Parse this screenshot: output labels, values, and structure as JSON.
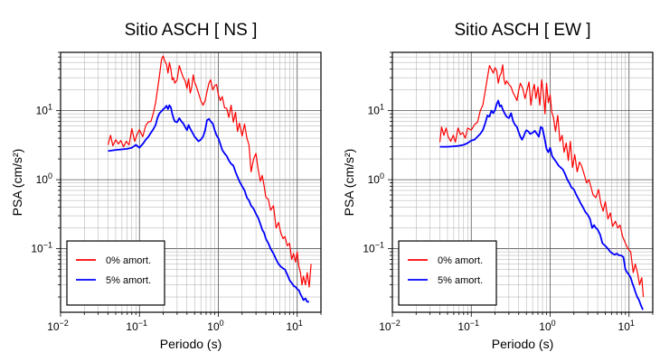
{
  "chart_data": [
    {
      "type": "line",
      "title": "Sitio ASCH [ NS ]",
      "xlabel": "Periodo (s)",
      "ylabel": "PSA (cm/s²)",
      "xscale": "log",
      "yscale": "log",
      "xlim": [
        0.01,
        20
      ],
      "ylim": [
        0.012,
        70
      ],
      "grid": true,
      "legend_position": "bottom-left",
      "x_ticks": [
        {
          "value": 0.01,
          "base": "10",
          "exp": "−2"
        },
        {
          "value": 0.1,
          "base": "10",
          "exp": "−1"
        },
        {
          "value": 1,
          "base": "10",
          "exp": "0"
        },
        {
          "value": 10,
          "base": "10",
          "exp": "1"
        }
      ],
      "y_ticks": [
        {
          "value": 0.1,
          "base": "10",
          "exp": "−1"
        },
        {
          "value": 1,
          "base": "10",
          "exp": "0"
        },
        {
          "value": 10,
          "base": "10",
          "exp": "1"
        }
      ],
      "series": [
        {
          "name": "0% amort.",
          "color": "#ff0000",
          "x": [
            0.04,
            0.043,
            0.046,
            0.05,
            0.054,
            0.058,
            0.063,
            0.068,
            0.074,
            0.08,
            0.087,
            0.094,
            0.1,
            0.11,
            0.12,
            0.13,
            0.14,
            0.15,
            0.16,
            0.17,
            0.18,
            0.19,
            0.2,
            0.21,
            0.22,
            0.23,
            0.24,
            0.25,
            0.26,
            0.27,
            0.28,
            0.3,
            0.32,
            0.34,
            0.36,
            0.38,
            0.4,
            0.42,
            0.44,
            0.46,
            0.48,
            0.5,
            0.53,
            0.56,
            0.6,
            0.64,
            0.68,
            0.72,
            0.76,
            0.8,
            0.85,
            0.9,
            0.95,
            1.0,
            1.06,
            1.12,
            1.2,
            1.28,
            1.36,
            1.45,
            1.55,
            1.65,
            1.75,
            1.85,
            2.0,
            2.15,
            2.3,
            2.45,
            2.6,
            2.8,
            3.0,
            3.2,
            3.4,
            3.6,
            3.8,
            4.0,
            4.3,
            4.6,
            5.0,
            5.4,
            5.8,
            6.2,
            6.6,
            7.0,
            7.5,
            8.0,
            8.5,
            9.0,
            9.5,
            10.0,
            10.5,
            11.0,
            11.5,
            12.0,
            12.7,
            13.4,
            14.2,
            15.0
          ],
          "values": [
            3.2,
            4.4,
            3.1,
            3.8,
            3.3,
            3.7,
            3.0,
            3.6,
            3.2,
            5.5,
            3.6,
            4.6,
            5.3,
            4.2,
            6.1,
            6.9,
            7.0,
            9.2,
            13,
            21,
            33,
            55,
            62,
            52,
            47,
            35,
            50,
            40,
            28,
            30,
            25,
            28,
            45,
            36,
            30,
            27,
            21,
            29,
            18,
            22,
            33,
            26,
            22,
            18,
            14,
            12,
            14,
            19,
            25,
            28,
            20,
            23,
            24,
            17,
            14,
            16,
            11,
            10.8,
            8.0,
            12,
            6.8,
            9.5,
            5.0,
            6.6,
            4.3,
            6.4,
            4.0,
            3.2,
            1.3,
            2.0,
            2.4,
            1.4,
            0.95,
            1.15,
            0.82,
            0.56,
            0.52,
            0.36,
            0.42,
            0.2,
            0.24,
            0.17,
            0.14,
            0.15,
            0.11,
            0.12,
            0.07,
            0.085,
            0.064,
            0.09,
            0.055,
            0.045,
            0.03,
            0.04,
            0.03,
            0.045,
            0.028,
            0.06
          ]
        },
        {
          "name": "5% amort.",
          "color": "#0000ff",
          "x": [
            0.04,
            0.05,
            0.06,
            0.07,
            0.08,
            0.09,
            0.1,
            0.11,
            0.12,
            0.13,
            0.14,
            0.15,
            0.16,
            0.17,
            0.18,
            0.19,
            0.2,
            0.21,
            0.22,
            0.23,
            0.24,
            0.25,
            0.26,
            0.27,
            0.28,
            0.3,
            0.32,
            0.34,
            0.36,
            0.38,
            0.4,
            0.42,
            0.44,
            0.46,
            0.48,
            0.5,
            0.53,
            0.56,
            0.6,
            0.64,
            0.68,
            0.72,
            0.76,
            0.8,
            0.85,
            0.9,
            0.95,
            1.0,
            1.06,
            1.12,
            1.2,
            1.28,
            1.36,
            1.45,
            1.55,
            1.65,
            1.75,
            1.85,
            2.0,
            2.15,
            2.3,
            2.45,
            2.6,
            2.8,
            3.0,
            3.2,
            3.4,
            3.6,
            3.8,
            4.0,
            4.3,
            4.6,
            5.0,
            5.4,
            5.8,
            6.2,
            6.6,
            7.0,
            7.5,
            8.0,
            8.5,
            9.0,
            9.5,
            10.0,
            10.5,
            11.0,
            11.5,
            12.0,
            12.7,
            13.4,
            14.2
          ],
          "values": [
            2.6,
            2.7,
            2.75,
            2.8,
            2.9,
            3.2,
            2.9,
            3.3,
            3.8,
            4.2,
            4.8,
            5.4,
            6.2,
            8.0,
            9.2,
            9.8,
            10.5,
            11.0,
            11.8,
            10.5,
            12,
            11.2,
            9.0,
            7.8,
            7.0,
            6.8,
            7.8,
            7.0,
            6.5,
            5.8,
            5.2,
            6.2,
            5.5,
            5.0,
            4.6,
            4.2,
            3.9,
            3.6,
            3.8,
            4.2,
            5.2,
            7.3,
            7.6,
            7.0,
            6.5,
            5.2,
            4.4,
            4.0,
            3.3,
            2.7,
            2.4,
            2.2,
            1.9,
            1.7,
            1.6,
            1.3,
            1.1,
            0.95,
            0.8,
            0.7,
            0.55,
            0.5,
            0.42,
            0.38,
            0.32,
            0.28,
            0.23,
            0.19,
            0.17,
            0.14,
            0.12,
            0.1,
            0.085,
            0.07,
            0.06,
            0.055,
            0.052,
            0.05,
            0.042,
            0.035,
            0.032,
            0.029,
            0.028,
            0.026,
            0.025,
            0.022,
            0.02,
            0.018,
            0.019,
            0.017,
            0.017
          ]
        }
      ]
    },
    {
      "type": "line",
      "title": "Sitio ASCH [ EW ]",
      "xlabel": "Periodo (s)",
      "ylabel": "PSA (cm/s²)",
      "xscale": "log",
      "yscale": "log",
      "xlim": [
        0.01,
        20
      ],
      "ylim": [
        0.012,
        70
      ],
      "grid": true,
      "legend_position": "bottom-left",
      "x_ticks": [
        {
          "value": 0.01,
          "base": "10",
          "exp": "−2"
        },
        {
          "value": 0.1,
          "base": "10",
          "exp": "−1"
        },
        {
          "value": 1,
          "base": "10",
          "exp": "0"
        },
        {
          "value": 10,
          "base": "10",
          "exp": "1"
        }
      ],
      "y_ticks": [
        {
          "value": 0.1,
          "base": "10",
          "exp": "−1"
        },
        {
          "value": 1,
          "base": "10",
          "exp": "0"
        },
        {
          "value": 10,
          "base": "10",
          "exp": "1"
        }
      ],
      "series": [
        {
          "name": "0% amort.",
          "color": "#ff0000",
          "x": [
            0.04,
            0.042,
            0.045,
            0.048,
            0.051,
            0.055,
            0.059,
            0.063,
            0.068,
            0.073,
            0.078,
            0.084,
            0.09,
            0.1,
            0.11,
            0.12,
            0.13,
            0.14,
            0.15,
            0.16,
            0.17,
            0.18,
            0.19,
            0.2,
            0.21,
            0.22,
            0.23,
            0.24,
            0.25,
            0.26,
            0.27,
            0.28,
            0.3,
            0.32,
            0.34,
            0.36,
            0.38,
            0.4,
            0.42,
            0.45,
            0.48,
            0.51,
            0.54,
            0.57,
            0.6,
            0.63,
            0.66,
            0.7,
            0.74,
            0.78,
            0.82,
            0.86,
            0.9,
            0.95,
            1.0,
            1.05,
            1.1,
            1.17,
            1.25,
            1.33,
            1.42,
            1.5,
            1.6,
            1.7,
            1.8,
            1.92,
            2.05,
            2.2,
            2.35,
            2.5,
            2.7,
            2.9,
            3.1,
            3.3,
            3.5,
            3.8,
            4.1,
            4.4,
            4.7,
            5.0,
            5.4,
            5.8,
            6.2,
            6.7,
            7.2,
            7.7,
            8.3,
            9.0,
            9.7,
            10.5,
            11.3,
            12.0,
            12.8,
            13.6,
            14.5,
            15.2
          ],
          "values": [
            3.5,
            5.8,
            4.4,
            5.6,
            4.2,
            3.6,
            4.4,
            3.5,
            5.6,
            4.5,
            4.8,
            4.0,
            5.6,
            5.2,
            6.3,
            6.8,
            10,
            12,
            19,
            30,
            45,
            40,
            35,
            42,
            38,
            25,
            32,
            35,
            46,
            28,
            24,
            27,
            24,
            22,
            18,
            16,
            14,
            20,
            25,
            21,
            15,
            20,
            26,
            12,
            19,
            24,
            15,
            22,
            12,
            28,
            18,
            9,
            25,
            13,
            17,
            9.5,
            8.0,
            5.0,
            8.5,
            3.6,
            4.4,
            2.5,
            3.4,
            1.9,
            3.6,
            1.5,
            2.3,
            1.3,
            1.8,
            1.6,
            1.2,
            0.9,
            1.0,
            0.78,
            0.6,
            0.55,
            0.72,
            0.45,
            0.35,
            0.48,
            0.27,
            0.33,
            0.21,
            0.25,
            0.2,
            0.22,
            0.15,
            0.12,
            0.1,
            0.09,
            0.045,
            0.06,
            0.045,
            0.03,
            0.038,
            0.02
          ]
        },
        {
          "name": "5% amort.",
          "color": "#0000ff",
          "x": [
            0.04,
            0.05,
            0.06,
            0.07,
            0.08,
            0.09,
            0.1,
            0.11,
            0.12,
            0.13,
            0.14,
            0.15,
            0.16,
            0.17,
            0.18,
            0.19,
            0.2,
            0.21,
            0.22,
            0.23,
            0.24,
            0.25,
            0.26,
            0.27,
            0.28,
            0.3,
            0.32,
            0.34,
            0.36,
            0.38,
            0.4,
            0.42,
            0.44,
            0.46,
            0.48,
            0.5,
            0.53,
            0.56,
            0.6,
            0.64,
            0.68,
            0.72,
            0.76,
            0.8,
            0.85,
            0.9,
            0.95,
            1.0,
            1.06,
            1.12,
            1.2,
            1.28,
            1.36,
            1.45,
            1.55,
            1.65,
            1.75,
            1.85,
            2.0,
            2.15,
            2.3,
            2.45,
            2.6,
            2.8,
            3.0,
            3.2,
            3.4,
            3.6,
            3.8,
            4.0,
            4.3,
            4.6,
            5.0,
            5.4,
            5.8,
            6.2,
            6.6,
            7.0,
            7.5,
            8.0,
            8.5,
            9.0,
            9.5,
            10.0,
            10.5,
            11.0,
            11.5,
            12.0,
            12.7,
            13.4,
            14.2,
            15.0
          ],
          "values": [
            3.0,
            3.0,
            3.05,
            3.1,
            3.2,
            3.4,
            3.7,
            3.8,
            4.2,
            4.6,
            5.2,
            6.5,
            8.5,
            8.2,
            10,
            9.2,
            10.2,
            12.5,
            14,
            11.5,
            12,
            10.5,
            9.5,
            8.8,
            8.2,
            7.8,
            9.2,
            7.0,
            6.2,
            5.8,
            4.8,
            4.2,
            3.8,
            4.2,
            4.8,
            5.2,
            5.0,
            4.6,
            4.8,
            5.1,
            4.6,
            4.2,
            5.8,
            5.6,
            4.0,
            2.8,
            2.5,
            2.9,
            2.2,
            2.0,
            1.8,
            1.6,
            1.5,
            1.4,
            1.2,
            1.0,
            0.9,
            0.78,
            0.72,
            0.6,
            0.52,
            0.45,
            0.4,
            0.34,
            0.31,
            0.27,
            0.2,
            0.22,
            0.2,
            0.19,
            0.16,
            0.12,
            0.11,
            0.1,
            0.09,
            0.085,
            0.082,
            0.085,
            0.08,
            0.08,
            0.075,
            0.05,
            0.045,
            0.042,
            0.038,
            0.032,
            0.028,
            0.024,
            0.02,
            0.018,
            0.015,
            0.013
          ]
        }
      ]
    }
  ]
}
